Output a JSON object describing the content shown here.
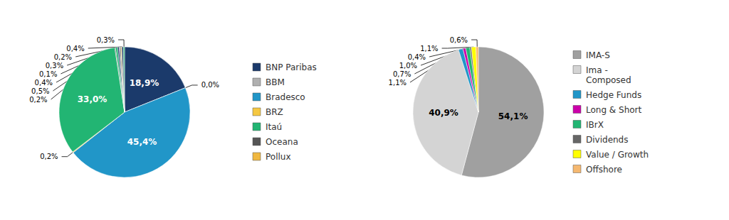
{
  "chart_data": [
    {
      "type": "pie",
      "values": [
        18.9,
        0.001,
        45.4,
        0.2,
        33.0,
        0.2,
        0.5,
        0.4,
        0.1,
        0.3,
        0.2,
        0.4,
        0.3
      ],
      "value_labels": [
        "18,9%",
        "0,0%",
        "45,4%",
        "0,2%",
        "33,0%",
        "0,2%",
        "0,5%",
        "0,4%",
        "0,1%",
        "0,3%",
        "0,2%",
        "0,4%",
        "0,3%"
      ],
      "colors": [
        "#1b3a6b",
        "#b0b0b0",
        "#2196c8",
        "#f5c842",
        "#22b573",
        "#555555",
        "#22b573",
        "#1b3a6b",
        "#b0b0b0",
        "#555555",
        "#f5c842",
        "#1b3a6b",
        "#22b573"
      ],
      "data_labels": true,
      "legend": "right",
      "legend_labels": [
        "BNP Paribas",
        "BBM",
        "Bradesco",
        "BRZ",
        "Itaú",
        "Oceana",
        "Pollux"
      ],
      "legend_colors": [
        "#1b3a6b",
        "#b0b0b0",
        "#2196c8",
        "#f5c842",
        "#22b573",
        "#555555",
        "#f0b840"
      ]
    },
    {
      "type": "pie",
      "values": [
        54.1,
        40.9,
        1.1,
        0.7,
        1.0,
        0.4,
        1.1,
        0.6
      ],
      "value_labels": [
        "54,1%",
        "40,9%",
        "1,1%",
        "0,7%",
        "1,0%",
        "0,4%",
        "1,1%",
        "0,6%"
      ],
      "colors": [
        "#a0a0a0",
        "#d4d4d4",
        "#2196c8",
        "#cc00aa",
        "#22b573",
        "#666666",
        "#ffff00",
        "#f5b870"
      ],
      "data_labels": true,
      "legend": "right",
      "legend_labels": [
        "IMA-S",
        "Ima -\nComposed",
        "Hedge Funds",
        "Long & Short",
        "IBrX",
        "Dividends",
        "Value / Growth",
        "Offshore"
      ],
      "legend_colors": [
        "#a0a0a0",
        "#d4d4d4",
        "#2196c8",
        "#cc00aa",
        "#22b573",
        "#666666",
        "#ffff00",
        "#f5b870"
      ]
    }
  ]
}
